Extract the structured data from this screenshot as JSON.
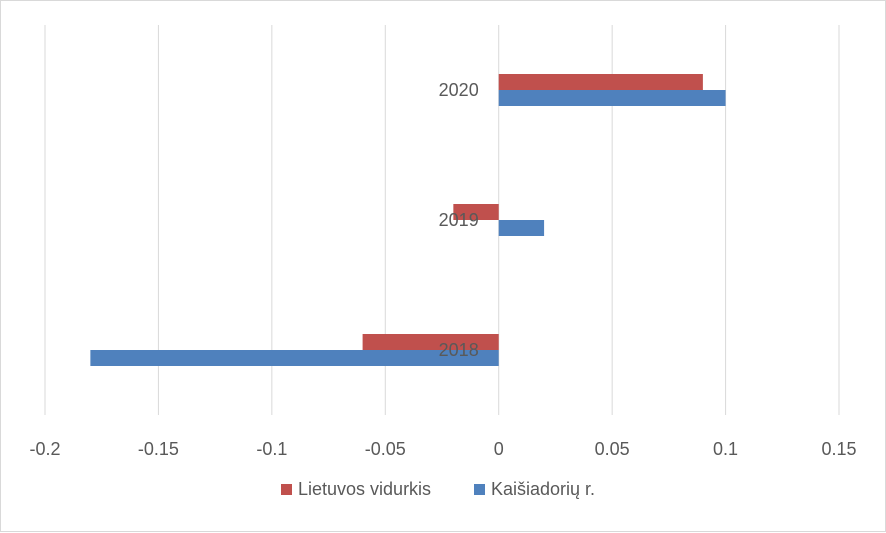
{
  "chart_data": {
    "type": "bar",
    "orientation": "horizontal",
    "categories": [
      "2018",
      "2019",
      "2020"
    ],
    "series": [
      {
        "name": "Lietuvos vidurkis",
        "color": "#C0504D",
        "values": [
          -0.06,
          -0.02,
          0.09
        ]
      },
      {
        "name": "Kaišiadorių r.",
        "color": "#4F81BD",
        "values": [
          -0.18,
          0.02,
          0.1
        ]
      }
    ],
    "xlim": [
      -0.2,
      0.15
    ],
    "xticks": [
      -0.2,
      -0.15,
      -0.1,
      -0.05,
      0,
      0.05,
      0.1,
      0.15
    ],
    "xtick_labels": [
      "-0.2",
      "-0.15",
      "-0.1",
      "-0.05",
      "0",
      "0.05",
      "0.1",
      "0.15"
    ],
    "grid": true,
    "legend_position": "bottom",
    "title": "",
    "xlabel": "",
    "ylabel": ""
  }
}
